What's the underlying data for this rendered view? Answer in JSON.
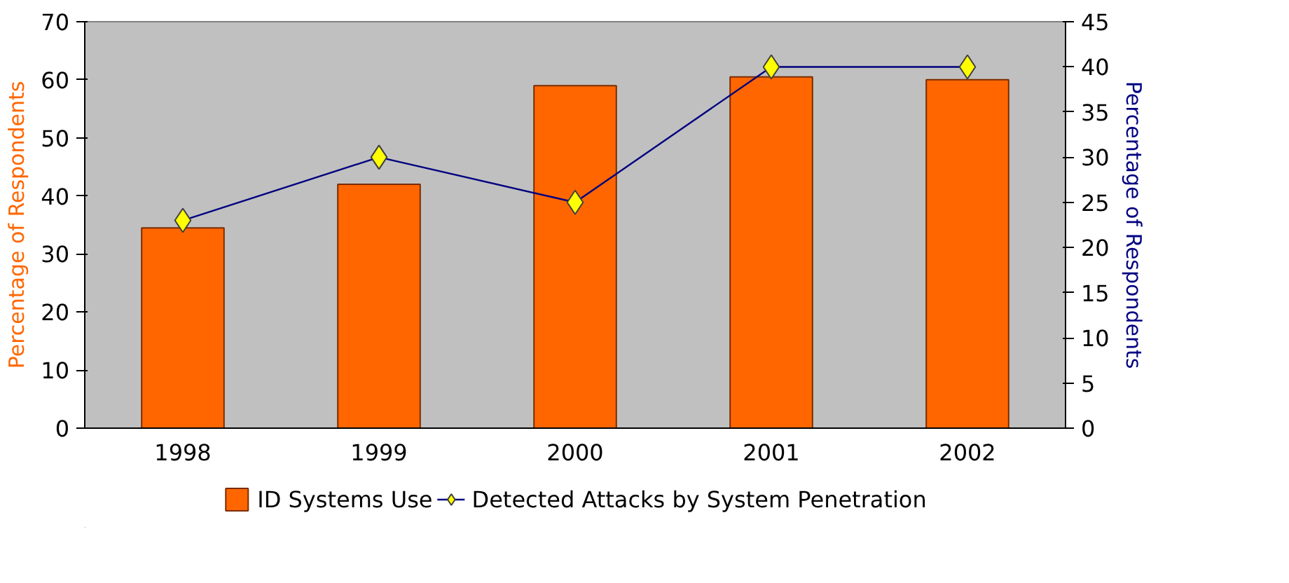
{
  "chart_data": {
    "type": "bar",
    "categories": [
      "1998",
      "1999",
      "2000",
      "2001",
      "2002"
    ],
    "ylabel": "Percentage of Respondents",
    "y2label": "Percentage of Respondents",
    "ylim": [
      0,
      70
    ],
    "yticks": [
      0,
      10,
      20,
      30,
      40,
      50,
      60,
      70
    ],
    "y2lim": [
      0,
      45
    ],
    "y2ticks": [
      0,
      5,
      10,
      15,
      20,
      25,
      30,
      35,
      40,
      45
    ],
    "series": [
      {
        "name": "ID Systems Use",
        "color": "#ff6600",
        "values": [
          34.5,
          42,
          59,
          60.5,
          60
        ]
      },
      {
        "name": "Detected Attacks by System Penetration",
        "type": "line",
        "axis": "y2",
        "color": "#000080",
        "values": [
          23,
          30,
          25,
          40,
          40
        ]
      }
    ],
    "marker": "diamond",
    "legend": "bottom",
    "grid": false
  }
}
